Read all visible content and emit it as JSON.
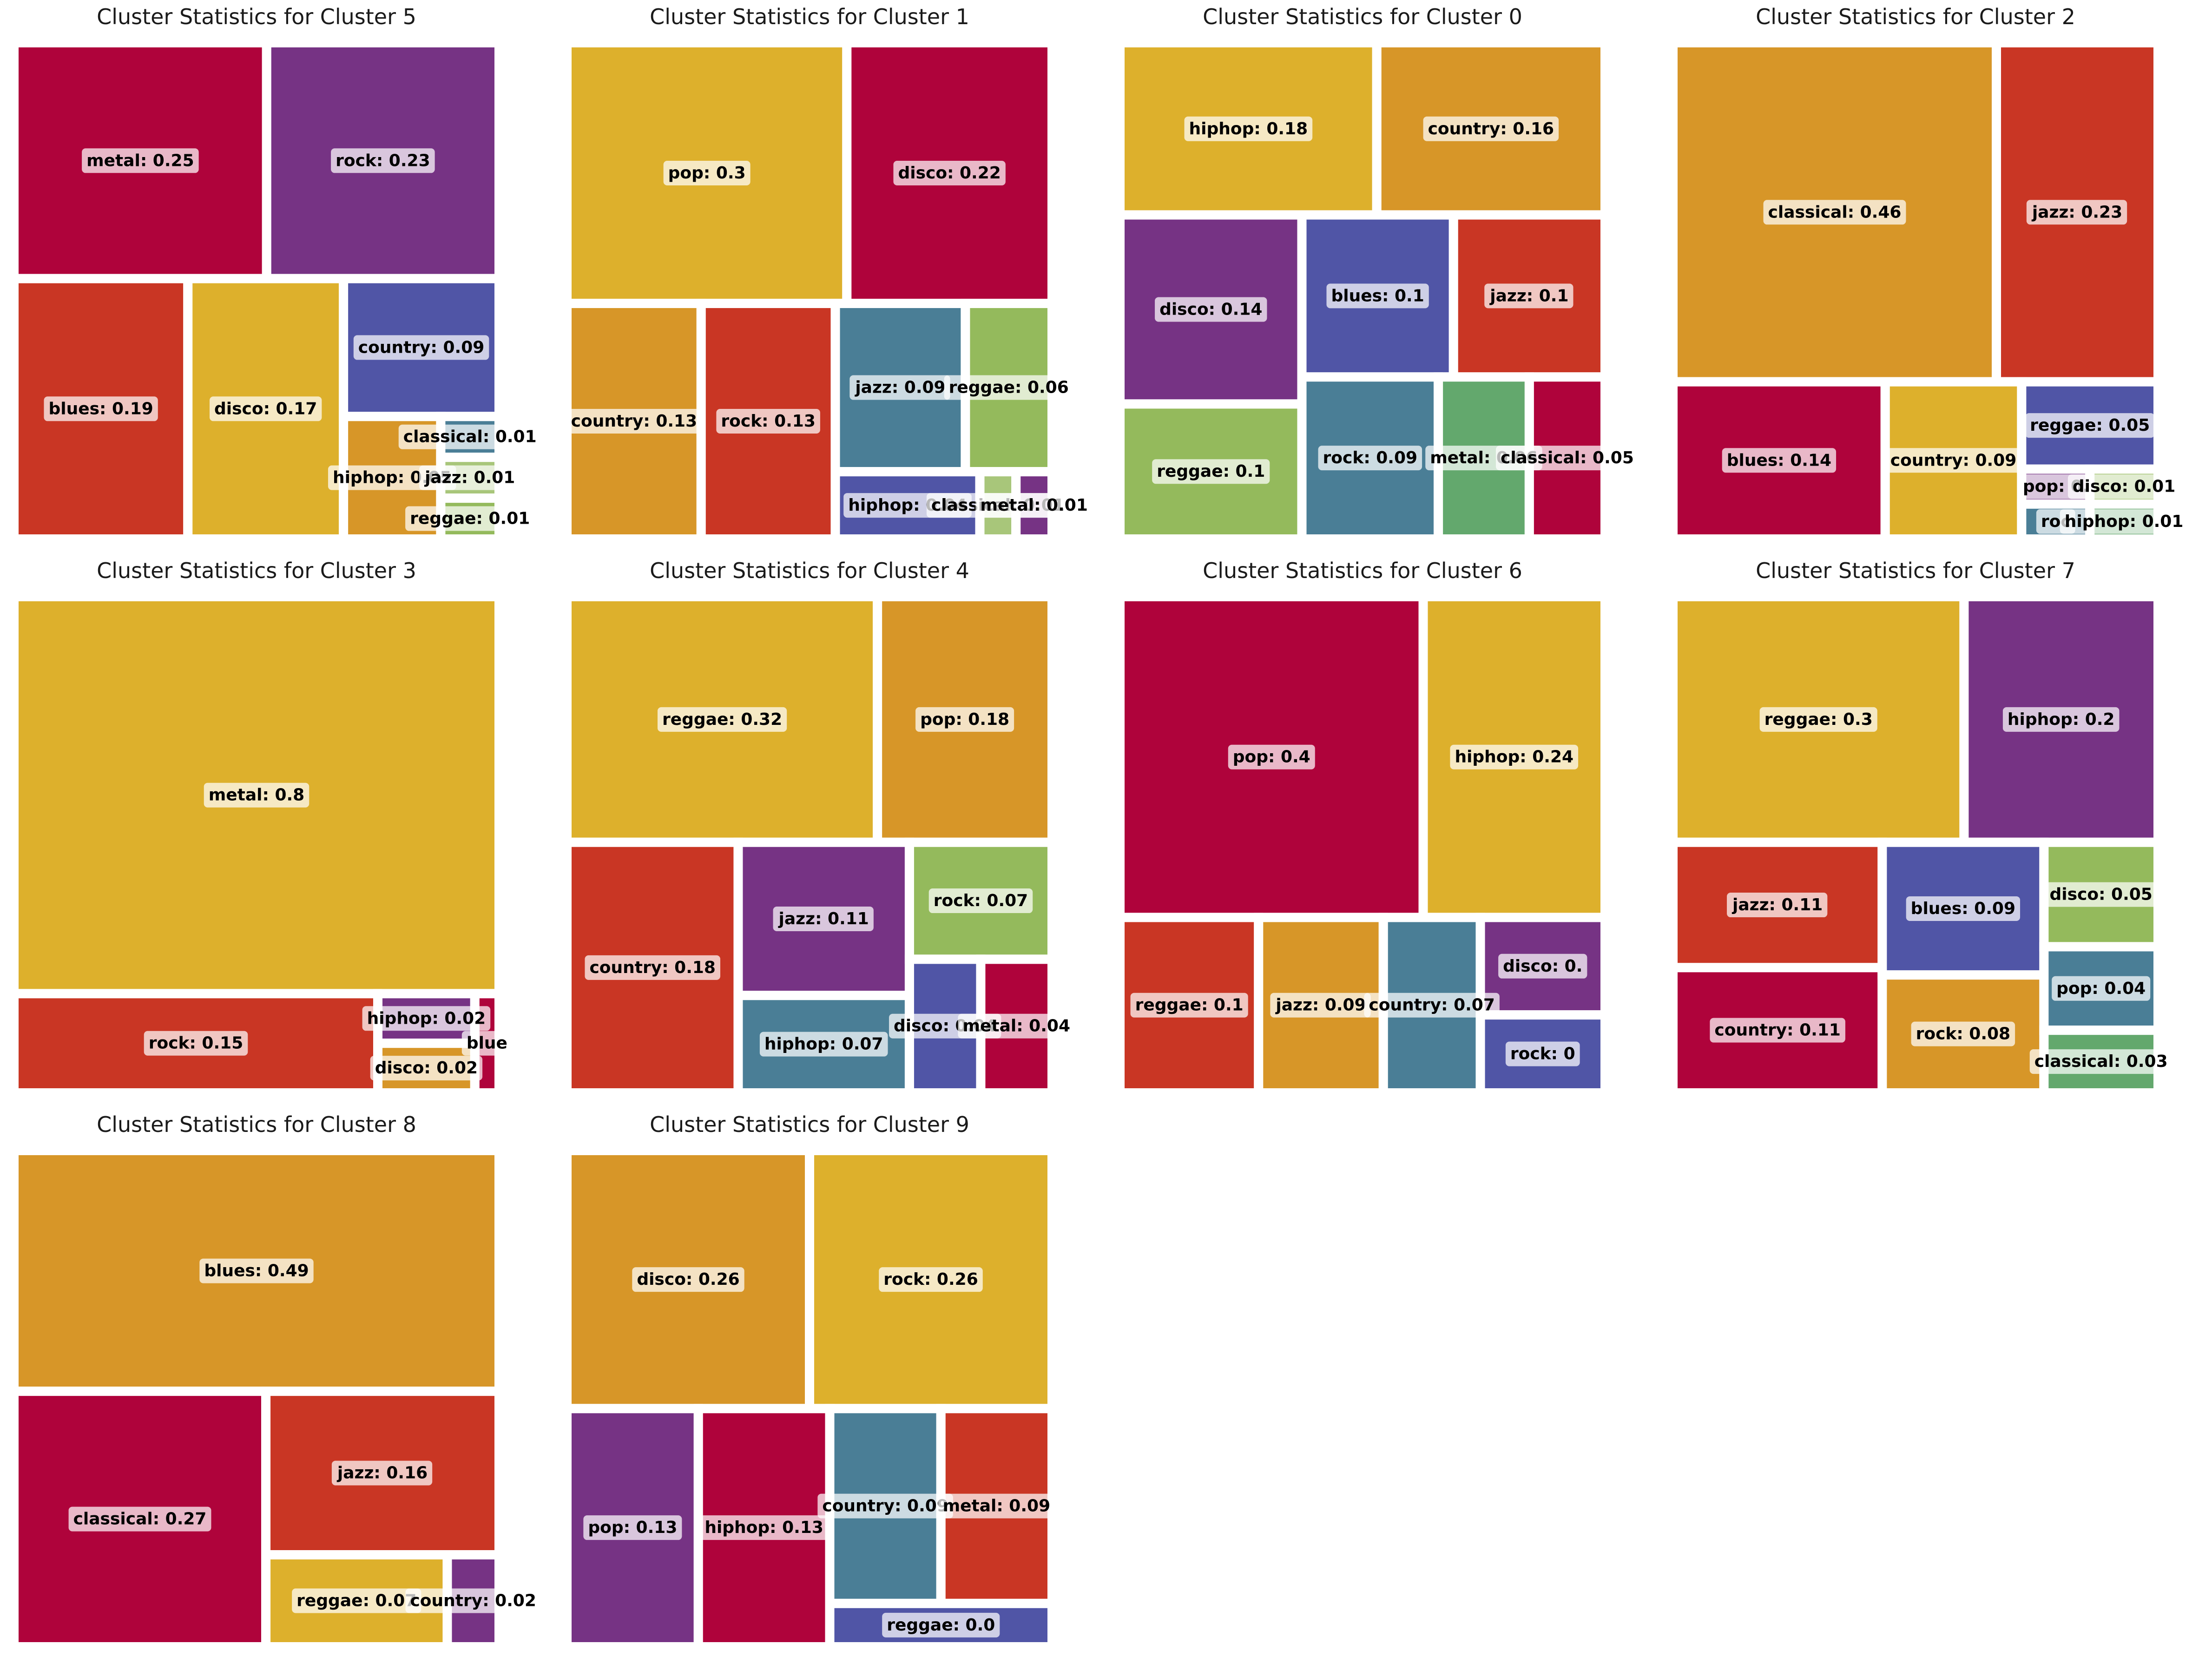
{
  "chart_data": [
    {
      "type": "treemap",
      "title": "Cluster Statistics for Cluster 5",
      "items": [
        {
          "label": "blues: 0.19",
          "value": 0.19,
          "color": "#C93624"
        },
        {
          "label": "hiphop: 0.05",
          "value": 0.05,
          "color": "#D79628"
        },
        {
          "label": "disco: 0.17",
          "value": 0.17,
          "color": "#DDB02C"
        },
        {
          "label": "rock: 0.23",
          "value": 0.23,
          "color": "#763384"
        },
        {
          "label": "metal: 0.25",
          "value": 0.25,
          "color": "#AF033B"
        },
        {
          "label": "country: 0.09",
          "value": 0.09,
          "color": "#5055A6"
        },
        {
          "label": "classical: 0.01",
          "value": 0.01,
          "color": "#4A7E96"
        },
        {
          "label": "jazz: 0.01",
          "value": 0.01,
          "color": "#A8C67A"
        },
        {
          "label": "reggae: 0.01",
          "value": 0.01,
          "color": "#94BA5C"
        }
      ]
    },
    {
      "type": "treemap",
      "title": "Cluster Statistics for Cluster 1",
      "items": [
        {
          "label": "country: 0.13",
          "value": 0.13,
          "color": "#D79628"
        },
        {
          "label": "pop: 0.3",
          "value": 0.3,
          "color": "#DDB02C"
        },
        {
          "label": "hiphop: 0.04",
          "value": 0.04,
          "color": "#5055A6"
        },
        {
          "label": "jazz: 0.09",
          "value": 0.09,
          "color": "#4A7E96"
        },
        {
          "label": "classical: 0.01",
          "value": 0.01,
          "color": "#A8C67A"
        },
        {
          "label": "reggae: 0.06",
          "value": 0.06,
          "color": "#94BA5C"
        },
        {
          "label": "metal: 0.01",
          "value": 0.01,
          "color": "#763384"
        },
        {
          "label": "disco: 0.22",
          "value": 0.22,
          "color": "#AF033B"
        },
        {
          "label": "rock: 0.13",
          "value": 0.13,
          "color": "#C93624"
        }
      ]
    },
    {
      "type": "treemap",
      "title": "Cluster Statistics for Cluster 0",
      "items": [
        {
          "label": "country: 0.16",
          "value": 0.16,
          "color": "#D79628"
        },
        {
          "label": "hiphop: 0.18",
          "value": 0.18,
          "color": "#DDB02C"
        },
        {
          "label": "rock: 0.09",
          "value": 0.09,
          "color": "#4A7E96"
        },
        {
          "label": "reggae: 0.1",
          "value": 0.1,
          "color": "#94BA5C"
        },
        {
          "label": "metal: 0.06",
          "value": 0.06,
          "color": "#63A86D"
        },
        {
          "label": "disco: 0.14",
          "value": 0.14,
          "color": "#763384"
        },
        {
          "label": "blues: 0.1",
          "value": 0.1,
          "color": "#5055A6"
        },
        {
          "label": "jazz: 0.1",
          "value": 0.1,
          "color": "#C93624"
        },
        {
          "label": "classical: 0.05",
          "value": 0.05,
          "color": "#AF033B"
        }
      ]
    },
    {
      "type": "treemap",
      "title": "Cluster Statistics for Cluster 2",
      "items": [
        {
          "label": "classical: 0.46",
          "value": 0.46,
          "color": "#D79628"
        },
        {
          "label": "country: 0.09",
          "value": 0.09,
          "color": "#DDB02C"
        },
        {
          "label": "pop: 0.",
          "value": 0.01,
          "color": "#763384"
        },
        {
          "label": "reggae: 0.05",
          "value": 0.05,
          "color": "#5055A6"
        },
        {
          "label": "roc",
          "value": 0.01,
          "color": "#4A7E96"
        },
        {
          "label": "disco: 0.01",
          "value": 0.01,
          "color": "#94BA5C"
        },
        {
          "label": "hiphop: 0.01",
          "value": 0.01,
          "color": "#63A86D"
        },
        {
          "label": "blues: 0.14",
          "value": 0.14,
          "color": "#AF033B"
        },
        {
          "label": "jazz: 0.23",
          "value": 0.23,
          "color": "#C93624"
        }
      ]
    },
    {
      "type": "treemap",
      "title": "Cluster Statistics for Cluster 3",
      "items": [
        {
          "label": "metal: 0.8",
          "value": 0.8,
          "color": "#DDB02C"
        },
        {
          "label": "blue",
          "value": 0.01,
          "color": "#AF033B"
        },
        {
          "label": "hiphop: 0.02",
          "value": 0.02,
          "color": "#763384"
        },
        {
          "label": "rock: 0.15",
          "value": 0.15,
          "color": "#C93624"
        },
        {
          "label": "disco: 0.02",
          "value": 0.02,
          "color": "#D79628"
        }
      ]
    },
    {
      "type": "treemap",
      "title": "Cluster Statistics for Cluster 4",
      "items": [
        {
          "label": "pop: 0.18",
          "value": 0.18,
          "color": "#D79628"
        },
        {
          "label": "reggae: 0.32",
          "value": 0.32,
          "color": "#DDB02C"
        },
        {
          "label": "hiphop: 0.07",
          "value": 0.07,
          "color": "#4A7E96"
        },
        {
          "label": "disco: 0.04",
          "value": 0.04,
          "color": "#5055A6"
        },
        {
          "label": "rock: 0.07",
          "value": 0.07,
          "color": "#94BA5C"
        },
        {
          "label": "metal: 0.04",
          "value": 0.04,
          "color": "#AF033B"
        },
        {
          "label": "jazz: 0.11",
          "value": 0.11,
          "color": "#763384"
        },
        {
          "label": "country: 0.18",
          "value": 0.18,
          "color": "#C93624"
        }
      ]
    },
    {
      "type": "treemap",
      "title": "Cluster Statistics for Cluster 6",
      "items": [
        {
          "label": "reggae: 0.1",
          "value": 0.1,
          "color": "#C93624"
        },
        {
          "label": "jazz: 0.09",
          "value": 0.09,
          "color": "#D79628"
        },
        {
          "label": "hiphop: 0.24",
          "value": 0.24,
          "color": "#DDB02C"
        },
        {
          "label": "disco: 0.",
          "value": 0.05,
          "color": "#763384"
        },
        {
          "label": "rock: 0",
          "value": 0.04,
          "color": "#5055A6"
        },
        {
          "label": "country: 0.07",
          "value": 0.07,
          "color": "#4A7E96"
        },
        {
          "label": "pop: 0.4",
          "value": 0.4,
          "color": "#AF033B"
        }
      ]
    },
    {
      "type": "treemap",
      "title": "Cluster Statistics for Cluster 7",
      "items": [
        {
          "label": "rock: 0.08",
          "value": 0.08,
          "color": "#D79628"
        },
        {
          "label": "reggae: 0.3",
          "value": 0.3,
          "color": "#DDB02C"
        },
        {
          "label": "blues: 0.09",
          "value": 0.09,
          "color": "#5055A6"
        },
        {
          "label": "disco: 0.05",
          "value": 0.05,
          "color": "#94BA5C"
        },
        {
          "label": "pop: 0.04",
          "value": 0.04,
          "color": "#4A7E96"
        },
        {
          "label": "classical: 0.03",
          "value": 0.03,
          "color": "#63A86D"
        },
        {
          "label": "hiphop: 0.2",
          "value": 0.2,
          "color": "#763384"
        },
        {
          "label": "jazz: 0.11",
          "value": 0.11,
          "color": "#C93624"
        },
        {
          "label": "country: 0.11",
          "value": 0.11,
          "color": "#AF033B"
        }
      ]
    },
    {
      "type": "treemap",
      "title": "Cluster Statistics for Cluster 8",
      "items": [
        {
          "label": "blues: 0.49",
          "value": 0.49,
          "color": "#D79628"
        },
        {
          "label": "reggae: 0.07",
          "value": 0.07,
          "color": "#DDB02C"
        },
        {
          "label": "country: 0.02",
          "value": 0.02,
          "color": "#763384"
        },
        {
          "label": "classical: 0.27",
          "value": 0.27,
          "color": "#AF033B"
        },
        {
          "label": "jazz: 0.16",
          "value": 0.16,
          "color": "#C93624"
        }
      ]
    },
    {
      "type": "treemap",
      "title": "Cluster Statistics for Cluster 9",
      "items": [
        {
          "label": "disco: 0.26",
          "value": 0.26,
          "color": "#D79628"
        },
        {
          "label": "rock: 0.26",
          "value": 0.26,
          "color": "#DDB02C"
        },
        {
          "label": "reggae: 0.0",
          "value": 0.04,
          "color": "#5055A6"
        },
        {
          "label": "country: 0.09",
          "value": 0.09,
          "color": "#4A7E96"
        },
        {
          "label": "pop: 0.13",
          "value": 0.13,
          "color": "#763384"
        },
        {
          "label": "metal: 0.09",
          "value": 0.09,
          "color": "#C93624"
        },
        {
          "label": "hiphop: 0.13",
          "value": 0.13,
          "color": "#AF033B"
        }
      ]
    }
  ]
}
